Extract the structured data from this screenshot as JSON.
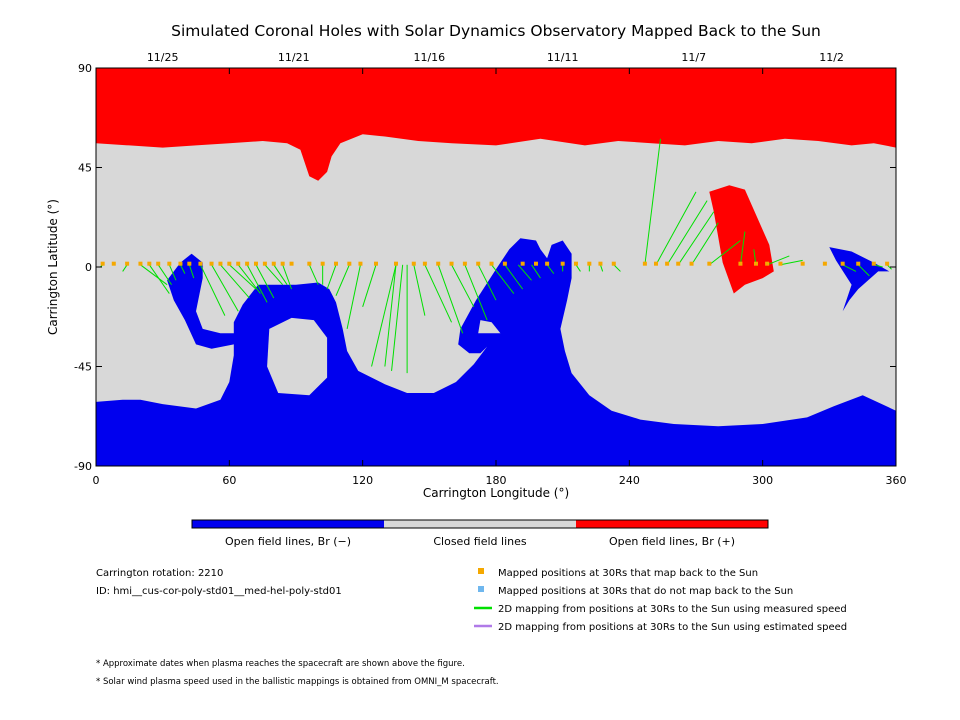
{
  "colors": {
    "open_negative": "#0000ee",
    "closed": "#d8d8d8",
    "open_positive": "#ff0000",
    "mapped_back": "#f5a800",
    "not_mapped": "#6fb7ee",
    "measured_line": "#00e000",
    "estimated_line": "#b07ae8"
  },
  "chart_data": {
    "type": "map",
    "title": "Simulated Coronal Holes with Solar Dynamics Observatory Mapped Back to the Sun",
    "xlabel": "Carrington Longitude (°)",
    "ylabel": "Carrington Latitude (°)",
    "xlim": [
      0,
      360
    ],
    "ylim": [
      -90,
      90
    ],
    "x_ticks": [
      "0",
      "60",
      "120",
      "180",
      "240",
      "300",
      "360"
    ],
    "y_ticks": [
      "90",
      "45",
      "0",
      "-45",
      "-90"
    ],
    "top_dates": [
      {
        "label": "11/25",
        "lon": 30
      },
      {
        "label": "11/21",
        "lon": 89
      },
      {
        "label": "11/16",
        "lon": 150
      },
      {
        "label": "11/11",
        "lon": 210
      },
      {
        "label": "11/7",
        "lon": 269
      },
      {
        "label": "11/2",
        "lon": 331
      }
    ],
    "colorbar": [
      {
        "label": "Open field lines, Br (−)",
        "color": "#0000ee"
      },
      {
        "label": "Closed field lines",
        "color": "#d8d8d8"
      },
      {
        "label": "Open field lines, Br (+)",
        "color": "#ff0000"
      }
    ],
    "regions": [
      {
        "polarity": "positive",
        "points": [
          [
            0,
            90
          ],
          [
            360,
            90
          ],
          [
            360,
            54
          ],
          [
            350,
            56
          ],
          [
            340,
            55
          ],
          [
            325,
            57
          ],
          [
            310,
            58
          ],
          [
            295,
            56
          ],
          [
            280,
            57
          ],
          [
            265,
            55
          ],
          [
            250,
            56
          ],
          [
            235,
            57
          ],
          [
            220,
            55
          ],
          [
            200,
            58
          ],
          [
            180,
            55
          ],
          [
            160,
            56
          ],
          [
            145,
            57
          ],
          [
            130,
            59
          ],
          [
            120,
            60
          ],
          [
            110,
            56
          ],
          [
            106,
            50
          ],
          [
            104,
            43
          ],
          [
            100,
            39
          ],
          [
            96,
            41
          ],
          [
            94,
            47
          ],
          [
            92,
            53
          ],
          [
            86,
            56
          ],
          [
            75,
            57
          ],
          [
            60,
            56
          ],
          [
            45,
            55
          ],
          [
            30,
            54
          ],
          [
            15,
            55
          ],
          [
            0,
            56
          ]
        ]
      },
      {
        "polarity": "negative",
        "points": [
          [
            0,
            -90
          ],
          [
            360,
            -90
          ],
          [
            360,
            -65
          ],
          [
            345,
            -58
          ],
          [
            332,
            -63
          ],
          [
            320,
            -68
          ],
          [
            300,
            -71
          ],
          [
            280,
            -72
          ],
          [
            260,
            -71
          ],
          [
            245,
            -69
          ],
          [
            232,
            -65
          ],
          [
            222,
            -58
          ],
          [
            214,
            -48
          ],
          [
            211,
            -38
          ],
          [
            209,
            -28
          ],
          [
            212,
            -15
          ],
          [
            214,
            -5
          ],
          [
            214,
            6
          ],
          [
            210,
            12
          ],
          [
            205,
            10
          ],
          [
            203,
            4
          ],
          [
            200,
            8
          ],
          [
            198,
            12
          ],
          [
            191,
            13
          ],
          [
            186,
            8
          ],
          [
            180,
            -1
          ],
          [
            171,
            -15
          ],
          [
            164,
            -28
          ],
          [
            163,
            -35
          ],
          [
            168,
            -39
          ],
          [
            173,
            -39
          ],
          [
            176,
            -36
          ],
          [
            170,
            -44
          ],
          [
            162,
            -52
          ],
          [
            152,
            -57
          ],
          [
            140,
            -57
          ],
          [
            130,
            -53
          ],
          [
            118,
            -47
          ],
          [
            113,
            -38
          ],
          [
            111,
            -28
          ],
          [
            108,
            -16
          ],
          [
            105,
            -10
          ],
          [
            100,
            -7
          ],
          [
            90,
            -8
          ],
          [
            80,
            -8
          ],
          [
            73,
            -8
          ],
          [
            66,
            -17
          ],
          [
            62,
            -25
          ],
          [
            62,
            -40
          ],
          [
            60,
            -52
          ],
          [
            56,
            -60
          ],
          [
            45,
            -64
          ],
          [
            30,
            -62
          ],
          [
            20,
            -60
          ],
          [
            12,
            -60
          ],
          [
            0,
            -61
          ]
        ]
      },
      {
        "polarity": "closed",
        "points": [
          [
            78,
            -28
          ],
          [
            88,
            -23
          ],
          [
            98,
            -24
          ],
          [
            104,
            -32
          ],
          [
            104,
            -50
          ],
          [
            96,
            -58
          ],
          [
            82,
            -57
          ],
          [
            77,
            -45
          ]
        ]
      },
      {
        "polarity": "closed",
        "points": [
          [
            180,
            -30
          ],
          [
            182,
            -30
          ],
          [
            178,
            -25
          ],
          [
            173,
            -24
          ],
          [
            172,
            -30
          ]
        ]
      },
      {
        "polarity": "negative",
        "points": [
          [
            32,
            -6
          ],
          [
            38,
            2
          ],
          [
            43,
            6
          ],
          [
            48,
            2
          ],
          [
            48,
            -5
          ],
          [
            45,
            -20
          ],
          [
            48,
            -28
          ],
          [
            56,
            -30
          ],
          [
            65,
            -30
          ],
          [
            62,
            -35
          ],
          [
            52,
            -37
          ],
          [
            45,
            -35
          ],
          [
            40,
            -24
          ],
          [
            35,
            -15
          ]
        ]
      },
      {
        "polarity": "positive",
        "points": [
          [
            276,
            34
          ],
          [
            285,
            37
          ],
          [
            292,
            35
          ],
          [
            303,
            10
          ],
          [
            305,
            -2
          ],
          [
            300,
            -5
          ],
          [
            292,
            -8
          ],
          [
            287,
            -12
          ],
          [
            282,
            2
          ],
          [
            278,
            25
          ]
        ]
      },
      {
        "polarity": "negative",
        "points": [
          [
            330,
            9
          ],
          [
            340,
            7
          ],
          [
            350,
            2
          ],
          [
            357,
            -2
          ],
          [
            352,
            -2
          ],
          [
            343,
            -10
          ],
          [
            339,
            -15
          ],
          [
            336,
            -20
          ],
          [
            340,
            -8
          ],
          [
            333,
            3
          ]
        ]
      }
    ],
    "mapped_points_lon": [
      3,
      8,
      14,
      20,
      24,
      28,
      33,
      38,
      42,
      47,
      52,
      56,
      60,
      64,
      68,
      72,
      76,
      80,
      84,
      88,
      96,
      102,
      108,
      114,
      119,
      126,
      135,
      143,
      148,
      154,
      160,
      166,
      172,
      178,
      184,
      192,
      198,
      203,
      210,
      216,
      222,
      227,
      233,
      247,
      252,
      257,
      262,
      268,
      276,
      290,
      297,
      302,
      308,
      318,
      328,
      336,
      343,
      350,
      356
    ],
    "mapped_points_lat": 1.5,
    "measured_links": [
      [
        [
          3,
          1
        ],
        [
          2,
          0
        ]
      ],
      [
        [
          14,
          1
        ],
        [
          12,
          -2
        ]
      ],
      [
        [
          20,
          1
        ],
        [
          32,
          -8
        ]
      ],
      [
        [
          24,
          1
        ],
        [
          33,
          -12
        ]
      ],
      [
        [
          28,
          1
        ],
        [
          34,
          -8
        ]
      ],
      [
        [
          33,
          1
        ],
        [
          36,
          -6
        ]
      ],
      [
        [
          38,
          1
        ],
        [
          40,
          -3
        ]
      ],
      [
        [
          42,
          1
        ],
        [
          44,
          -5
        ]
      ],
      [
        [
          47,
          1
        ],
        [
          58,
          -22
        ]
      ],
      [
        [
          52,
          1
        ],
        [
          64,
          -20
        ]
      ],
      [
        [
          56,
          1
        ],
        [
          69,
          -14
        ]
      ],
      [
        [
          60,
          1
        ],
        [
          72,
          -10
        ]
      ],
      [
        [
          64,
          1
        ],
        [
          74,
          -12
        ]
      ],
      [
        [
          68,
          1
        ],
        [
          77,
          -16
        ]
      ],
      [
        [
          72,
          1
        ],
        [
          80,
          -14
        ]
      ],
      [
        [
          76,
          1
        ],
        [
          84,
          -8
        ]
      ],
      [
        [
          80,
          1
        ],
        [
          86,
          -8
        ]
      ],
      [
        [
          84,
          1
        ],
        [
          88,
          -10
        ]
      ],
      [
        [
          96,
          1
        ],
        [
          100,
          -8
        ]
      ],
      [
        [
          102,
          1
        ],
        [
          102,
          -8
        ]
      ],
      [
        [
          108,
          1
        ],
        [
          104,
          -10
        ]
      ],
      [
        [
          114,
          1
        ],
        [
          108,
          -13
        ]
      ],
      [
        [
          119,
          1
        ],
        [
          113,
          -28
        ]
      ],
      [
        [
          126,
          1
        ],
        [
          120,
          -18
        ]
      ],
      [
        [
          135,
          1
        ],
        [
          124,
          -45
        ]
      ],
      [
        [
          135,
          1
        ],
        [
          130,
          -45
        ]
      ],
      [
        [
          138,
          1
        ],
        [
          133,
          -47
        ]
      ],
      [
        [
          140,
          1
        ],
        [
          140,
          -48
        ]
      ],
      [
        [
          143,
          1
        ],
        [
          148,
          -22
        ]
      ],
      [
        [
          148,
          1
        ],
        [
          160,
          -25
        ]
      ],
      [
        [
          154,
          1
        ],
        [
          165,
          -30
        ]
      ],
      [
        [
          160,
          1
        ],
        [
          170,
          -18
        ]
      ],
      [
        [
          166,
          1
        ],
        [
          176,
          -24
        ]
      ],
      [
        [
          172,
          1
        ],
        [
          180,
          -15
        ]
      ],
      [
        [
          178,
          1
        ],
        [
          188,
          -12
        ]
      ],
      [
        [
          184,
          1
        ],
        [
          192,
          -10
        ]
      ],
      [
        [
          190,
          1
        ],
        [
          196,
          -6
        ]
      ],
      [
        [
          196,
          1
        ],
        [
          200,
          -5
        ]
      ],
      [
        [
          203,
          1
        ],
        [
          206,
          -3
        ]
      ],
      [
        [
          210,
          1
        ],
        [
          210,
          -2
        ]
      ],
      [
        [
          216,
          1
        ],
        [
          218,
          -2
        ]
      ],
      [
        [
          222,
          1
        ],
        [
          222,
          -2
        ]
      ],
      [
        [
          227,
          1
        ],
        [
          228,
          -2
        ]
      ],
      [
        [
          233,
          1
        ],
        [
          236,
          -2
        ]
      ],
      [
        [
          247,
          1
        ],
        [
          254,
          58
        ]
      ],
      [
        [
          252,
          1
        ],
        [
          270,
          34
        ]
      ],
      [
        [
          257,
          1
        ],
        [
          275,
          30
        ]
      ],
      [
        [
          262,
          1
        ],
        [
          278,
          25
        ]
      ],
      [
        [
          268,
          1
        ],
        [
          280,
          20
        ]
      ],
      [
        [
          276,
          1
        ],
        [
          290,
          12
        ]
      ],
      [
        [
          290,
          1
        ],
        [
          292,
          16
        ]
      ],
      [
        [
          297,
          1
        ],
        [
          296,
          8
        ]
      ],
      [
        [
          302,
          1
        ],
        [
          312,
          5
        ]
      ],
      [
        [
          308,
          1
        ],
        [
          318,
          3
        ]
      ],
      [
        [
          336,
          1
        ],
        [
          342,
          -2
        ]
      ],
      [
        [
          343,
          1
        ],
        [
          348,
          -4
        ]
      ],
      [
        [
          350,
          1
        ],
        [
          354,
          0
        ]
      ],
      [
        [
          356,
          1
        ],
        [
          358,
          -1
        ]
      ]
    ]
  },
  "legend": {
    "carrington_rotation": "Carrington rotation: 2210",
    "id": "ID: hmi__cus-cor-poly-std01__med-hel-poly-std01",
    "items": [
      {
        "label": "Mapped positions at 30Rs that map back to the Sun",
        "marker": "square",
        "color": "#f5a800"
      },
      {
        "label": "Mapped positions at 30Rs that do not map back to the Sun",
        "marker": "square",
        "color": "#6fb7ee"
      },
      {
        "label": "2D mapping from positions at 30Rs to the Sun using measured speed",
        "marker": "line",
        "color": "#00e000"
      },
      {
        "label": "2D mapping from positions at 30Rs to the Sun using estimated speed",
        "marker": "line",
        "color": "#b07ae8"
      }
    ]
  },
  "notes": [
    "* Approximate dates when plasma reaches the spacecraft are shown above the figure.",
    "* Solar wind plasma speed used in the ballistic mappings is obtained from OMNI_M spacecraft."
  ]
}
